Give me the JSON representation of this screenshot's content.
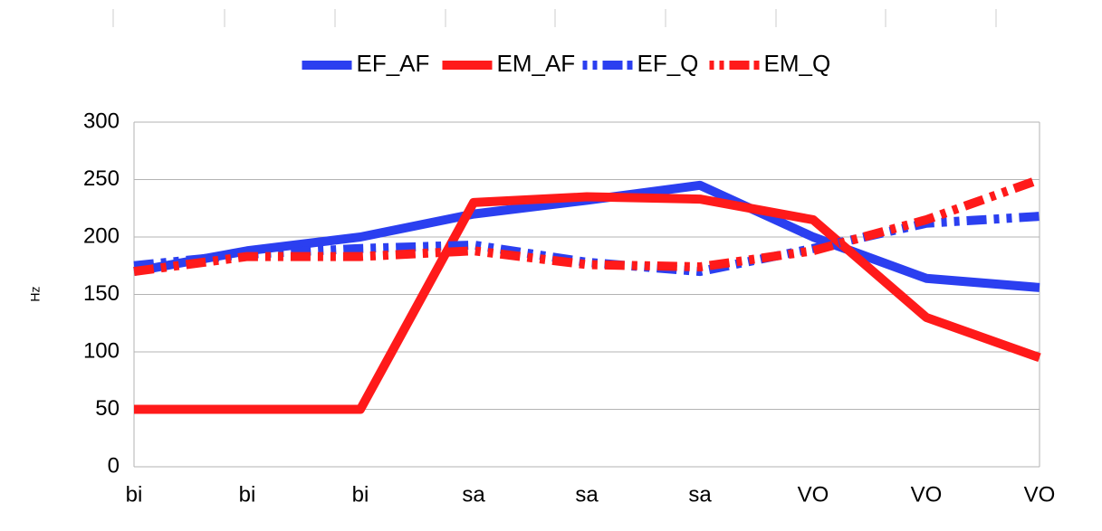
{
  "chart_data": {
    "type": "line",
    "y_label": "Hz",
    "categories": [
      "bi",
      "bi",
      "bi",
      "sa",
      "sa",
      "sa",
      "VO",
      "VO",
      "VO"
    ],
    "series": [
      {
        "name": "EF_AF",
        "color": "#2b3ff0",
        "style": "solid",
        "values": [
          170,
          188,
          200,
          220,
          232,
          245,
          200,
          164,
          156
        ]
      },
      {
        "name": "EM_AF",
        "color": "#ff1a1a",
        "style": "solid",
        "values": [
          50,
          50,
          50,
          230,
          235,
          233,
          215,
          130,
          95
        ]
      },
      {
        "name": "EF_Q",
        "color": "#2b3ff0",
        "style": "dashdotdot",
        "values": [
          175,
          185,
          190,
          193,
          178,
          170,
          190,
          212,
          218
        ]
      },
      {
        "name": "EM_Q",
        "color": "#ff1a1a",
        "style": "dashdotdot",
        "values": [
          170,
          183,
          183,
          188,
          176,
          174,
          188,
          215,
          250
        ]
      }
    ],
    "ylim": [
      0,
      300
    ],
    "yticks": [
      0,
      50,
      100,
      150,
      200,
      250,
      300
    ],
    "grid": true,
    "legend": "top"
  }
}
